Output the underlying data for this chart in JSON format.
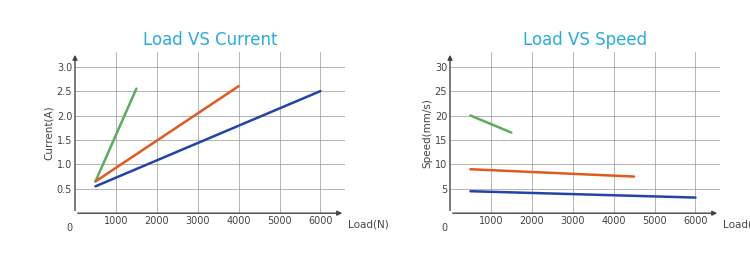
{
  "chart1": {
    "title": "Load VS Current",
    "xlabel": "Load(N)",
    "ylabel": "Current(A)",
    "xlim": [
      0,
      6600
    ],
    "ylim": [
      0,
      3.3
    ],
    "xticks": [
      1000,
      2000,
      3000,
      4000,
      5000,
      6000
    ],
    "yticks": [
      0.5,
      1.0,
      1.5,
      2.0,
      2.5,
      3.0
    ],
    "lines": [
      {
        "x": [
          500,
          1500
        ],
        "y": [
          0.65,
          2.55
        ],
        "color": "#5aad5a",
        "lw": 1.8
      },
      {
        "x": [
          500,
          4000
        ],
        "y": [
          0.65,
          2.6
        ],
        "color": "#e05a20",
        "lw": 1.8
      },
      {
        "x": [
          500,
          6000
        ],
        "y": [
          0.55,
          2.5
        ],
        "color": "#2244aa",
        "lw": 1.8
      }
    ]
  },
  "chart2": {
    "title": "Load VS Speed",
    "xlabel": "Load(N)",
    "ylabel": "Speed(mm/s)",
    "xlim": [
      0,
      6600
    ],
    "ylim": [
      0,
      33
    ],
    "xticks": [
      1000,
      2000,
      3000,
      4000,
      5000,
      6000
    ],
    "yticks": [
      5,
      10,
      15,
      20,
      25,
      30
    ],
    "lines": [
      {
        "x": [
          500,
          1500
        ],
        "y": [
          20.0,
          16.5
        ],
        "color": "#5aad5a",
        "lw": 1.8
      },
      {
        "x": [
          500,
          4500
        ],
        "y": [
          9.0,
          7.5
        ],
        "color": "#e05a20",
        "lw": 1.8
      },
      {
        "x": [
          500,
          6000
        ],
        "y": [
          4.5,
          3.2
        ],
        "color": "#2244aa",
        "lw": 1.8
      }
    ]
  },
  "title_color": "#29abe2",
  "title_fontsize": 12,
  "axis_color": "#444444",
  "tick_fontsize": 7,
  "label_fontsize": 7.5,
  "grid_color": "#999999",
  "grid_lw": 0.5,
  "background_color": "#ffffff"
}
